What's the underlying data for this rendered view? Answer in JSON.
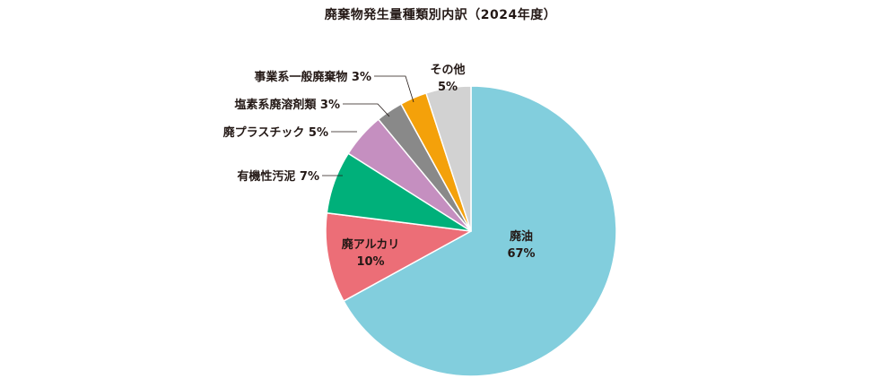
{
  "chart_data": {
    "type": "pie",
    "title": "廃棄物発生量種類別内訳（2024年度）",
    "start_angle_deg": 0,
    "direction": "clockwise",
    "slices": [
      {
        "label": "廃油",
        "value": 67,
        "value_text": "67%",
        "color": "#82cedd"
      },
      {
        "label": "廃アルカリ",
        "value": 10,
        "value_text": "10%",
        "color": "#ec6e77"
      },
      {
        "label": "有機性汚泥",
        "value": 7,
        "value_text": "7%",
        "color": "#00b07a"
      },
      {
        "label": "廃プラスチック",
        "value": 5,
        "value_text": "5%",
        "color": "#c58fc0"
      },
      {
        "label": "塩素系廃溶剤類",
        "value": 3,
        "value_text": "3%",
        "color": "#898989"
      },
      {
        "label": "事業系一般廃棄物",
        "value": 3,
        "value_text": "3%",
        "color": "#f4a10a"
      },
      {
        "label": "その他",
        "value": 5,
        "value_text": "5%",
        "color": "#d2d2d2"
      }
    ],
    "legend": "none"
  }
}
